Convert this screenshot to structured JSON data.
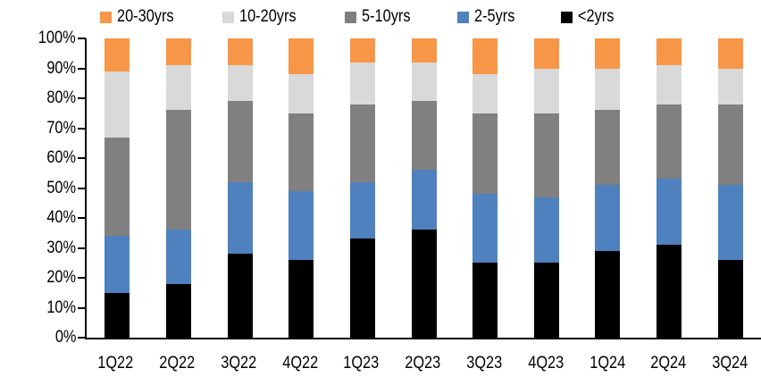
{
  "chart_data": {
    "type": "bar",
    "stacked": true,
    "unit": "%",
    "title": "",
    "xlabel": "",
    "ylabel": "",
    "ylim": [
      0,
      100
    ],
    "grid": false,
    "legend_position": "top",
    "legend": [
      {
        "label": "20-30yrs",
        "color": "#F79646"
      },
      {
        "label": "10-20yrs",
        "color": "#D9D9D9"
      },
      {
        "label": "5-10yrs",
        "color": "#808080"
      },
      {
        "label": "2-5yrs",
        "color": "#4E81BD"
      },
      {
        "label": "<2yrs",
        "color": "#000000"
      }
    ],
    "categories": [
      "1Q22",
      "2Q22",
      "3Q22",
      "4Q22",
      "1Q23",
      "2Q23",
      "3Q23",
      "4Q23",
      "1Q24",
      "2Q24",
      "3Q24"
    ],
    "series": [
      {
        "name": "<2yrs",
        "color": "#000000",
        "values": [
          15,
          18,
          28,
          26,
          33,
          36,
          25,
          25,
          29,
          31,
          26
        ]
      },
      {
        "name": "2-5yrs",
        "color": "#4E81BD",
        "values": [
          19,
          18,
          24,
          23,
          19,
          20,
          23,
          22,
          22,
          22,
          25
        ]
      },
      {
        "name": "5-10yrs",
        "color": "#808080",
        "values": [
          33,
          40,
          27,
          26,
          26,
          23,
          27,
          28,
          25,
          25,
          27
        ]
      },
      {
        "name": "10-20yrs",
        "color": "#D9D9D9",
        "values": [
          22,
          15,
          12,
          13,
          14,
          13,
          13,
          15,
          14,
          13,
          12
        ]
      },
      {
        "name": "20-30yrs",
        "color": "#F79646",
        "values": [
          11,
          9,
          9,
          12,
          8,
          8,
          12,
          10,
          10,
          9,
          10
        ]
      }
    ],
    "y_ticks": [
      "100%",
      "90%",
      "80%",
      "70%",
      "60%",
      "50%",
      "40%",
      "30%",
      "20%",
      "10%",
      "0%"
    ],
    "axis_color": "#000000",
    "background_color": "#FFFFFF"
  }
}
